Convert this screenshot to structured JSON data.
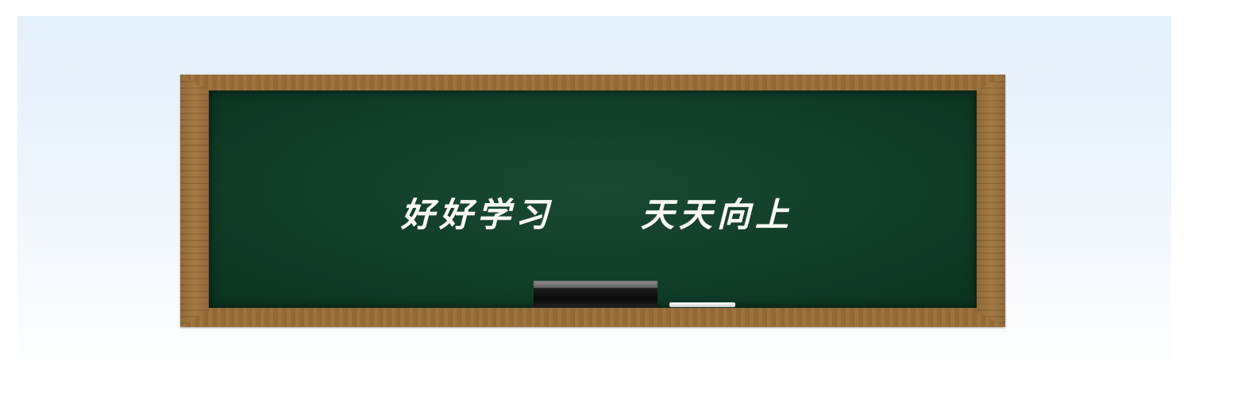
{
  "scene": {
    "motto_left": "好好学习",
    "motto_right": "天天向上"
  },
  "colors": {
    "background_top": "#e4f0fb",
    "background_bottom": "#ffffff",
    "board_green": "#113d29",
    "frame_wood": "#9a6f38",
    "chalk_text": "#fbfbf5",
    "eraser": "#111111",
    "chalk_stick": "#f0f0f0"
  }
}
